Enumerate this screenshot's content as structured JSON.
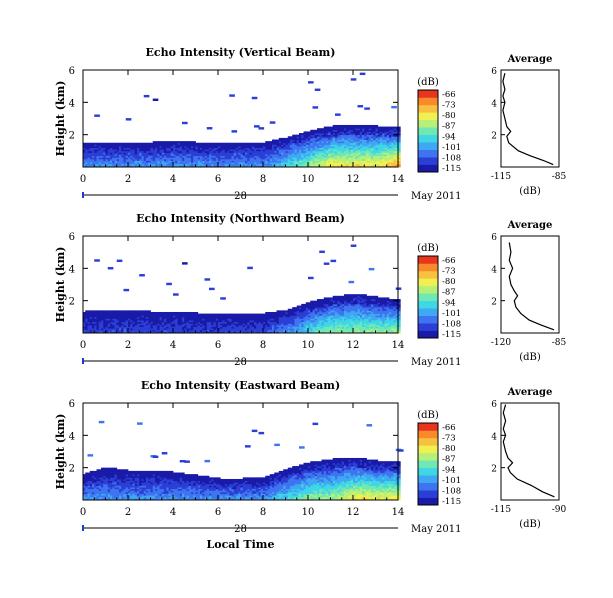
{
  "footer": {
    "xlabel": "Local Time"
  },
  "colorbar": {
    "unit": "(dB)",
    "ticks": [
      "-66",
      "-73",
      "-80",
      "-87",
      "-94",
      "-101",
      "-108",
      "-115"
    ],
    "colors": [
      "#1a1aa8",
      "#2b3fd6",
      "#3f74f0",
      "#3fa8f2",
      "#3fd6e6",
      "#6fe8b4",
      "#b4f07a",
      "#f0f050",
      "#f8c040",
      "#f88a2a",
      "#e8361e"
    ]
  },
  "chart_data": [
    {
      "type": "heatmap",
      "title": "Echo Intensity (Vertical Beam)",
      "ylabel": "Height (km)",
      "x_ticks": [
        "0",
        "2",
        "4",
        "6",
        "8",
        "10",
        "12",
        "14"
      ],
      "y_ticks": [
        "2",
        "4",
        "6"
      ],
      "xlim": [
        0,
        14
      ],
      "ylim": [
        0,
        6
      ],
      "date_day": "28",
      "date_month": "May 2011",
      "colorbar_range_db": [
        -115,
        -66
      ],
      "top_echo_km": [
        1.5,
        1.5,
        1.5,
        1.5,
        1.6,
        1.5,
        1.5,
        1.5,
        1.5,
        1.8,
        2.2,
        2.5,
        2.6,
        2.5,
        2.4
      ],
      "surface_db": [
        -101,
        -101,
        -101,
        -101,
        -101,
        -101,
        -101,
        -101,
        -101,
        -94,
        -87,
        -80,
        -80,
        -80,
        -73
      ],
      "average": {
        "title": "Average",
        "xlabel": "(dB)",
        "x_ticks": [
          "-115",
          "-85"
        ],
        "xlim": [
          -115,
          -85
        ],
        "y_ticks": [
          "2",
          "4",
          "6"
        ],
        "ylim": [
          0,
          6
        ],
        "profile": [
          [
            -88,
            0.15
          ],
          [
            -93,
            0.4
          ],
          [
            -100,
            0.7
          ],
          [
            -106,
            1.0
          ],
          [
            -111,
            1.5
          ],
          [
            -112,
            1.9
          ],
          [
            -110,
            2.2
          ],
          [
            -112,
            2.5
          ],
          [
            -113,
            3.0
          ],
          [
            -114,
            3.5
          ],
          [
            -113,
            4.0
          ],
          [
            -114,
            4.4
          ],
          [
            -113,
            4.8
          ],
          [
            -114,
            5.3
          ],
          [
            -113,
            5.8
          ]
        ]
      }
    },
    {
      "type": "heatmap",
      "title": "Echo Intensity (Northward Beam)",
      "ylabel": "Height (km)",
      "x_ticks": [
        "0",
        "2",
        "4",
        "6",
        "8",
        "10",
        "12",
        "14"
      ],
      "y_ticks": [
        "2",
        "4",
        "6"
      ],
      "xlim": [
        0,
        14
      ],
      "ylim": [
        0,
        6
      ],
      "date_day": "28",
      "date_month": "May 2011",
      "colorbar_range_db": [
        -115,
        -66
      ],
      "top_echo_km": [
        1.3,
        1.4,
        1.4,
        1.3,
        1.3,
        1.2,
        1.2,
        1.2,
        1.2,
        1.4,
        1.9,
        2.2,
        2.4,
        2.2,
        2.0
      ],
      "surface_db": [
        -108,
        -108,
        -108,
        -108,
        -108,
        -108,
        -108,
        -108,
        -108,
        -101,
        -94,
        -87,
        -87,
        -87,
        -87
      ],
      "average": {
        "title": "Average",
        "xlabel": "(dB)",
        "x_ticks": [
          "-120",
          "-85"
        ],
        "xlim": [
          -120,
          -85
        ],
        "y_ticks": [
          "2",
          "4",
          "6"
        ],
        "ylim": [
          0,
          6
        ],
        "profile": [
          [
            -88,
            0.2
          ],
          [
            -96,
            0.5
          ],
          [
            -103,
            0.8
          ],
          [
            -108,
            1.2
          ],
          [
            -111,
            1.6
          ],
          [
            -112,
            2.0
          ],
          [
            -110,
            2.3
          ],
          [
            -112,
            2.6
          ],
          [
            -114,
            3.0
          ],
          [
            -115,
            3.5
          ],
          [
            -113,
            4.0
          ],
          [
            -115,
            4.5
          ],
          [
            -114,
            5.0
          ],
          [
            -115,
            5.6
          ]
        ]
      }
    },
    {
      "type": "heatmap",
      "title": "Echo Intensity (Eastward Beam)",
      "ylabel": "Height (km)",
      "x_ticks": [
        "0",
        "2",
        "4",
        "6",
        "8",
        "10",
        "12",
        "14"
      ],
      "y_ticks": [
        "2",
        "4",
        "6"
      ],
      "xlim": [
        0,
        14
      ],
      "ylim": [
        0,
        6
      ],
      "date_day": "28",
      "date_month": "May 2011",
      "colorbar_range_db": [
        -115,
        -66
      ],
      "top_echo_km": [
        1.6,
        2.0,
        1.8,
        1.8,
        1.7,
        1.5,
        1.3,
        1.3,
        1.4,
        1.9,
        2.3,
        2.5,
        2.6,
        2.4,
        2.3
      ],
      "surface_db": [
        -101,
        -101,
        -101,
        -101,
        -101,
        -101,
        -101,
        -101,
        -101,
        -94,
        -87,
        -87,
        -80,
        -80,
        -80
      ],
      "average": {
        "title": "Average",
        "xlabel": "(dB)",
        "x_ticks": [
          "-115",
          "-90"
        ],
        "xlim": [
          -115,
          -90
        ],
        "y_ticks": [
          "2",
          "4",
          "6"
        ],
        "ylim": [
          0,
          6
        ],
        "profile": [
          [
            -92,
            0.2
          ],
          [
            -97,
            0.5
          ],
          [
            -102,
            0.9
          ],
          [
            -108,
            1.3
          ],
          [
            -111,
            1.7
          ],
          [
            -112,
            2.0
          ],
          [
            -110,
            2.3
          ],
          [
            -112,
            2.6
          ],
          [
            -113,
            3.0
          ],
          [
            -114,
            3.6
          ],
          [
            -113,
            4.0
          ],
          [
            -114,
            4.4
          ],
          [
            -113,
            4.9
          ],
          [
            -114,
            5.4
          ],
          [
            -113,
            5.9
          ]
        ]
      }
    }
  ]
}
